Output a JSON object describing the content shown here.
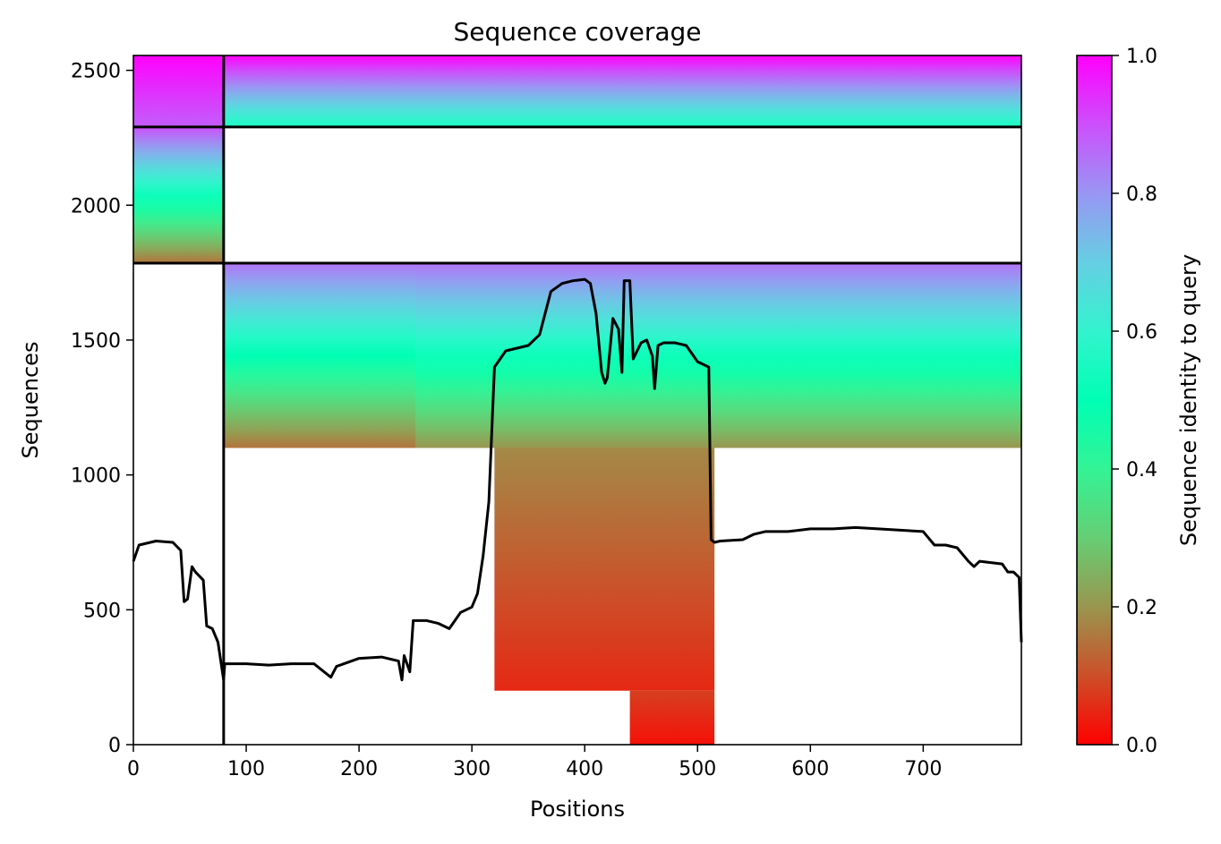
{
  "chart_data": {
    "type": "heatmap",
    "title": "Sequence coverage",
    "xlabel": "Positions",
    "ylabel": "Sequences",
    "xlim": [
      0,
      787
    ],
    "ylim": [
      0,
      2555
    ],
    "x_ticks": [
      0,
      100,
      200,
      300,
      400,
      500,
      600,
      700
    ],
    "y_ticks": [
      0,
      500,
      1000,
      1500,
      2000,
      2500
    ],
    "grid": false,
    "colormap": "rainbow_r",
    "colorbar": {
      "label": "Sequence identity to query",
      "range": [
        0,
        1
      ],
      "ticks": [
        0.0,
        0.2,
        0.4,
        0.6,
        0.8,
        1.0
      ],
      "tick_labels": [
        "0.0",
        "0.2",
        "0.4",
        "0.6",
        "0.8",
        "1.0"
      ]
    },
    "colors": {
      "low_identity": "#ff0000",
      "mid_identity": "#80ffb3",
      "high_identity": "#8000ff",
      "coverage_line": "#000000",
      "chain_boundary": "#000000"
    },
    "chain_boundaries": {
      "positions": [
        80
      ],
      "sequences": [
        1785,
        2290
      ]
    },
    "msa_blocks": [
      {
        "x": [
          0,
          80
        ],
        "y": [
          2290,
          2555
        ],
        "identity": [
          0.88,
          1.0
        ]
      },
      {
        "x": [
          80,
          787
        ],
        "y": [
          2290,
          2555
        ],
        "identity": [
          0.55,
          1.0
        ]
      },
      {
        "x": [
          0,
          80
        ],
        "y": [
          1785,
          2290
        ],
        "identity": [
          0.15,
          0.9
        ]
      },
      {
        "x": [
          80,
          787
        ],
        "y": [
          1100,
          1785
        ],
        "identity": [
          0.15,
          0.85
        ]
      },
      {
        "x": [
          250,
          787
        ],
        "y": [
          1100,
          1785
        ],
        "identity": [
          0.2,
          0.85
        ]
      },
      {
        "x": [
          320,
          515
        ],
        "y": [
          200,
          1100
        ],
        "identity": [
          0.05,
          0.18
        ]
      },
      {
        "x": [
          440,
          515
        ],
        "y": [
          0,
          200
        ],
        "identity": [
          0.02,
          0.08
        ]
      }
    ],
    "coverage_series": {
      "name": "",
      "x": [
        0,
        5,
        20,
        35,
        42,
        45,
        48,
        52,
        55,
        62,
        65,
        70,
        75,
        80,
        81,
        100,
        120,
        140,
        160,
        175,
        180,
        200,
        220,
        235,
        238,
        240,
        245,
        248,
        250,
        260,
        270,
        280,
        290,
        300,
        305,
        310,
        315,
        320,
        330,
        340,
        350,
        360,
        370,
        380,
        390,
        400,
        405,
        410,
        415,
        418,
        420,
        425,
        430,
        433,
        435,
        440,
        443,
        450,
        455,
        460,
        462,
        465,
        470,
        480,
        490,
        500,
        510,
        512,
        515,
        520,
        540,
        550,
        560,
        580,
        600,
        620,
        640,
        660,
        680,
        700,
        710,
        720,
        730,
        740,
        745,
        750,
        760,
        770,
        775,
        780,
        785,
        787
      ],
      "y": [
        680,
        740,
        755,
        750,
        720,
        530,
        540,
        660,
        640,
        610,
        440,
        430,
        380,
        240,
        300,
        300,
        295,
        300,
        300,
        250,
        290,
        320,
        325,
        310,
        240,
        330,
        270,
        460,
        460,
        460,
        450,
        430,
        490,
        510,
        560,
        700,
        900,
        1400,
        1460,
        1470,
        1480,
        1520,
        1680,
        1710,
        1720,
        1725,
        1710,
        1600,
        1380,
        1340,
        1360,
        1580,
        1540,
        1380,
        1720,
        1720,
        1430,
        1490,
        1500,
        1440,
        1320,
        1480,
        1490,
        1490,
        1480,
        1420,
        1400,
        760,
        750,
        755,
        760,
        780,
        790,
        790,
        800,
        800,
        805,
        800,
        795,
        790,
        740,
        740,
        730,
        680,
        660,
        680,
        675,
        670,
        640,
        640,
        620,
        380
      ]
    }
  }
}
